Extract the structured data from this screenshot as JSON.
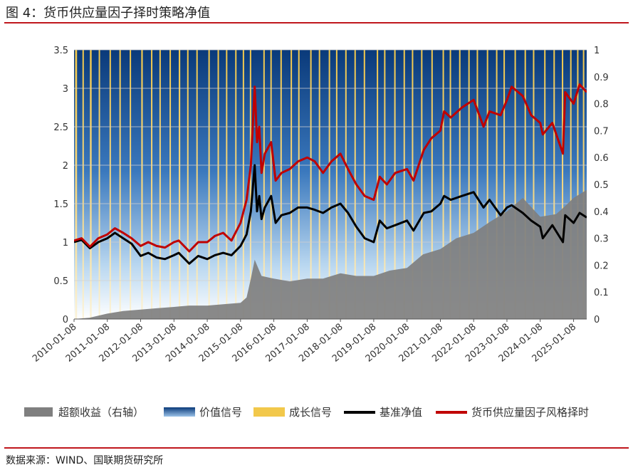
{
  "header": {
    "title": "图 4：货币供应量因子择时策略净值"
  },
  "footer": {
    "source": "数据来源：WIND、国联期货研究所"
  },
  "colors": {
    "accent_red": "#c0171d",
    "excess": "#7f7f7f",
    "value_signal": "#0a3a7a",
    "growth_signal": "#f2c84b",
    "benchmark": "#000000",
    "strategy": "#c00000"
  },
  "chart_data": {
    "type": "line",
    "title": "",
    "x_ticks": [
      "2010-01-08",
      "2011-01-08",
      "2012-01-08",
      "2013-01-08",
      "2014-01-08",
      "2015-01-08",
      "2016-01-08",
      "2017-01-08",
      "2018-01-08",
      "2019-01-08",
      "2020-01-08",
      "2021-01-08",
      "2022-01-08",
      "2023-01-08",
      "2024-01-08",
      "2025-01-08"
    ],
    "x_tick_labels": [
      "2010-01-08",
      "2011-01-08",
      "2012-01-08",
      "2013-01-08",
      "2014-01-08",
      "2015-01-08",
      "2016-01-08",
      "2017-01-08",
      "2018-01-08",
      "2019-01-08",
      "2020-01-08",
      "2021-01-08",
      "2022-01-08",
      "2023-01-08",
      "2024-01-08",
      "2025-01-08"
    ],
    "x_range": [
      "2010-01-08",
      "2025-06-01"
    ],
    "y_left": {
      "ylim": [
        0,
        3.5
      ],
      "ticks": [
        "0",
        "0.5",
        "1",
        "1.5",
        "2",
        "2.5",
        "3",
        "3.5"
      ]
    },
    "y_right": {
      "ylim": [
        0,
        1
      ],
      "ticks": [
        "0",
        "0.1",
        "0.2",
        "0.3",
        "0.4",
        "0.5",
        "0.6",
        "0.7",
        "0.8",
        "0.9",
        "1"
      ]
    },
    "legend": {
      "position": "bottom",
      "items": [
        "超额收益（右轴）",
        "价值信号",
        "成长信号",
        "基准净值",
        "货币供应量因子风格择时"
      ]
    },
    "series": [
      {
        "name": "基准净值",
        "axis": "left",
        "points": [
          [
            "2010-01-08",
            1.0
          ],
          [
            "2010-04-01",
            1.03
          ],
          [
            "2010-07-01",
            0.92
          ],
          [
            "2010-10-01",
            1.0
          ],
          [
            "2011-01-08",
            1.05
          ],
          [
            "2011-04-01",
            1.12
          ],
          [
            "2011-07-01",
            1.05
          ],
          [
            "2011-10-01",
            0.98
          ],
          [
            "2012-01-08",
            0.82
          ],
          [
            "2012-04-01",
            0.86
          ],
          [
            "2012-07-01",
            0.8
          ],
          [
            "2012-10-01",
            0.78
          ],
          [
            "2013-01-08",
            0.83
          ],
          [
            "2013-03-01",
            0.86
          ],
          [
            "2013-06-25",
            0.72
          ],
          [
            "2013-10-01",
            0.82
          ],
          [
            "2014-01-08",
            0.78
          ],
          [
            "2014-04-01",
            0.83
          ],
          [
            "2014-07-01",
            0.86
          ],
          [
            "2014-10-01",
            0.83
          ],
          [
            "2015-01-08",
            0.95
          ],
          [
            "2015-03-15",
            1.1
          ],
          [
            "2015-05-01",
            1.4
          ],
          [
            "2015-06-12",
            2.0
          ],
          [
            "2015-07-08",
            1.4
          ],
          [
            "2015-08-01",
            1.6
          ],
          [
            "2015-08-26",
            1.3
          ],
          [
            "2015-10-01",
            1.45
          ],
          [
            "2015-12-10",
            1.6
          ],
          [
            "2016-01-28",
            1.25
          ],
          [
            "2016-04-01",
            1.35
          ],
          [
            "2016-07-01",
            1.38
          ],
          [
            "2016-10-01",
            1.45
          ],
          [
            "2017-01-08",
            1.45
          ],
          [
            "2017-04-01",
            1.42
          ],
          [
            "2017-07-01",
            1.38
          ],
          [
            "2017-10-01",
            1.45
          ],
          [
            "2018-01-08",
            1.5
          ],
          [
            "2018-04-01",
            1.38
          ],
          [
            "2018-07-01",
            1.2
          ],
          [
            "2018-10-01",
            1.05
          ],
          [
            "2019-01-08",
            1.0
          ],
          [
            "2019-03-15",
            1.28
          ],
          [
            "2019-06-01",
            1.18
          ],
          [
            "2019-09-01",
            1.22
          ],
          [
            "2020-01-08",
            1.28
          ],
          [
            "2020-03-20",
            1.15
          ],
          [
            "2020-07-10",
            1.38
          ],
          [
            "2020-10-01",
            1.4
          ],
          [
            "2021-01-08",
            1.5
          ],
          [
            "2021-02-18",
            1.6
          ],
          [
            "2021-05-01",
            1.55
          ],
          [
            "2021-09-01",
            1.6
          ],
          [
            "2022-01-08",
            1.65
          ],
          [
            "2022-04-26",
            1.45
          ],
          [
            "2022-07-01",
            1.55
          ],
          [
            "2022-10-31",
            1.35
          ],
          [
            "2023-01-08",
            1.45
          ],
          [
            "2023-03-01",
            1.48
          ],
          [
            "2023-07-01",
            1.38
          ],
          [
            "2023-10-01",
            1.28
          ],
          [
            "2024-01-08",
            1.2
          ],
          [
            "2024-02-05",
            1.05
          ],
          [
            "2024-05-20",
            1.22
          ],
          [
            "2024-09-13",
            1.0
          ],
          [
            "2024-10-08",
            1.35
          ],
          [
            "2025-01-08",
            1.25
          ],
          [
            "2025-03-15",
            1.38
          ],
          [
            "2025-06-01",
            1.32
          ]
        ]
      },
      {
        "name": "货币供应量因子风格择时",
        "axis": "left",
        "points": [
          [
            "2010-01-08",
            1.02
          ],
          [
            "2010-04-01",
            1.05
          ],
          [
            "2010-07-01",
            0.94
          ],
          [
            "2010-10-01",
            1.05
          ],
          [
            "2011-01-08",
            1.1
          ],
          [
            "2011-04-01",
            1.18
          ],
          [
            "2011-07-01",
            1.12
          ],
          [
            "2011-10-01",
            1.05
          ],
          [
            "2012-01-08",
            0.95
          ],
          [
            "2012-04-01",
            1.0
          ],
          [
            "2012-07-01",
            0.95
          ],
          [
            "2012-10-01",
            0.93
          ],
          [
            "2013-01-08",
            1.0
          ],
          [
            "2013-03-01",
            1.02
          ],
          [
            "2013-06-25",
            0.88
          ],
          [
            "2013-10-01",
            1.0
          ],
          [
            "2014-01-08",
            1.0
          ],
          [
            "2014-04-01",
            1.08
          ],
          [
            "2014-07-01",
            1.12
          ],
          [
            "2014-10-01",
            1.02
          ],
          [
            "2015-01-08",
            1.25
          ],
          [
            "2015-03-15",
            1.55
          ],
          [
            "2015-05-01",
            2.0
          ],
          [
            "2015-06-12",
            3.02
          ],
          [
            "2015-07-08",
            2.3
          ],
          [
            "2015-08-01",
            2.5
          ],
          [
            "2015-08-26",
            1.9
          ],
          [
            "2015-10-01",
            2.15
          ],
          [
            "2015-12-10",
            2.3
          ],
          [
            "2016-01-28",
            1.8
          ],
          [
            "2016-04-01",
            1.9
          ],
          [
            "2016-07-01",
            1.95
          ],
          [
            "2016-10-01",
            2.05
          ],
          [
            "2017-01-08",
            2.1
          ],
          [
            "2017-04-01",
            2.05
          ],
          [
            "2017-07-01",
            1.9
          ],
          [
            "2017-10-01",
            2.05
          ],
          [
            "2018-01-08",
            2.15
          ],
          [
            "2018-04-01",
            1.95
          ],
          [
            "2018-07-01",
            1.75
          ],
          [
            "2018-10-01",
            1.6
          ],
          [
            "2019-01-08",
            1.55
          ],
          [
            "2019-03-15",
            1.85
          ],
          [
            "2019-06-01",
            1.75
          ],
          [
            "2019-09-01",
            1.9
          ],
          [
            "2020-01-08",
            1.95
          ],
          [
            "2020-03-20",
            1.8
          ],
          [
            "2020-07-10",
            2.2
          ],
          [
            "2020-10-01",
            2.35
          ],
          [
            "2021-01-08",
            2.45
          ],
          [
            "2021-02-18",
            2.7
          ],
          [
            "2021-05-01",
            2.62
          ],
          [
            "2021-09-01",
            2.75
          ],
          [
            "2022-01-08",
            2.85
          ],
          [
            "2022-04-26",
            2.5
          ],
          [
            "2022-07-01",
            2.7
          ],
          [
            "2022-10-31",
            2.65
          ],
          [
            "2023-01-08",
            2.85
          ],
          [
            "2023-03-01",
            3.02
          ],
          [
            "2023-07-01",
            2.9
          ],
          [
            "2023-10-01",
            2.65
          ],
          [
            "2024-01-08",
            2.55
          ],
          [
            "2024-02-05",
            2.4
          ],
          [
            "2024-05-20",
            2.55
          ],
          [
            "2024-09-13",
            2.15
          ],
          [
            "2024-10-08",
            2.95
          ],
          [
            "2025-01-08",
            2.8
          ],
          [
            "2025-03-15",
            3.05
          ],
          [
            "2025-06-01",
            2.95
          ]
        ]
      },
      {
        "name": "超额收益（右轴）",
        "axis": "right",
        "type": "area",
        "points": [
          [
            "2010-01-08",
            0.0
          ],
          [
            "2010-07-01",
            0.005
          ],
          [
            "2011-01-08",
            0.02
          ],
          [
            "2011-07-01",
            0.03
          ],
          [
            "2012-01-08",
            0.035
          ],
          [
            "2012-07-01",
            0.04
          ],
          [
            "2013-01-08",
            0.045
          ],
          [
            "2013-06-25",
            0.05
          ],
          [
            "2014-01-08",
            0.05
          ],
          [
            "2014-07-01",
            0.055
          ],
          [
            "2015-01-08",
            0.06
          ],
          [
            "2015-03-15",
            0.08
          ],
          [
            "2015-05-01",
            0.15
          ],
          [
            "2015-06-12",
            0.22
          ],
          [
            "2015-08-26",
            0.16
          ],
          [
            "2016-01-08",
            0.15
          ],
          [
            "2016-07-01",
            0.14
          ],
          [
            "2017-01-08",
            0.15
          ],
          [
            "2017-07-01",
            0.15
          ],
          [
            "2018-01-08",
            0.17
          ],
          [
            "2018-07-01",
            0.16
          ],
          [
            "2019-01-08",
            0.16
          ],
          [
            "2019-07-01",
            0.18
          ],
          [
            "2020-01-08",
            0.19
          ],
          [
            "2020-07-01",
            0.24
          ],
          [
            "2021-01-08",
            0.26
          ],
          [
            "2021-07-01",
            0.3
          ],
          [
            "2022-01-08",
            0.32
          ],
          [
            "2022-07-01",
            0.36
          ],
          [
            "2023-01-08",
            0.4
          ],
          [
            "2023-07-01",
            0.45
          ],
          [
            "2024-01-08",
            0.38
          ],
          [
            "2024-07-01",
            0.39
          ],
          [
            "2024-10-08",
            0.42
          ],
          [
            "2025-01-08",
            0.45
          ],
          [
            "2025-06-01",
            0.48
          ]
        ]
      }
    ],
    "growth_signal_periods": [
      [
        "2010-01-20",
        "2010-02-10"
      ],
      [
        "2010-04-10",
        "2010-04-25"
      ],
      [
        "2010-07-01",
        "2010-07-20"
      ],
      [
        "2010-10-05",
        "2010-10-20"
      ],
      [
        "2011-02-01",
        "2011-02-15"
      ],
      [
        "2011-05-20",
        "2011-06-05"
      ],
      [
        "2011-09-10",
        "2011-09-25"
      ],
      [
        "2012-01-15",
        "2012-02-01"
      ],
      [
        "2012-05-01",
        "2012-05-12"
      ],
      [
        "2012-08-01",
        "2012-08-15"
      ],
      [
        "2012-11-20",
        "2012-12-05"
      ],
      [
        "2013-03-01",
        "2013-03-18"
      ],
      [
        "2013-06-01",
        "2013-06-15"
      ],
      [
        "2013-09-10",
        "2013-09-22"
      ],
      [
        "2014-01-20",
        "2014-02-05"
      ],
      [
        "2014-05-01",
        "2014-05-15"
      ],
      [
        "2014-08-01",
        "2014-08-12"
      ],
      [
        "2014-11-10",
        "2014-11-25"
      ],
      [
        "2015-02-01",
        "2015-02-15"
      ],
      [
        "2015-04-20",
        "2015-05-05"
      ],
      [
        "2015-09-15",
        "2015-09-30"
      ],
      [
        "2015-12-01",
        "2015-12-12"
      ],
      [
        "2016-03-20",
        "2016-04-05"
      ],
      [
        "2016-07-10",
        "2016-07-22"
      ],
      [
        "2016-10-01",
        "2016-10-15"
      ],
      [
        "2017-02-10",
        "2017-02-25"
      ],
      [
        "2017-05-15",
        "2017-05-28"
      ],
      [
        "2017-09-01",
        "2017-09-12"
      ],
      [
        "2017-11-20",
        "2017-12-05"
      ],
      [
        "2018-03-01",
        "2018-03-15"
      ],
      [
        "2018-06-10",
        "2018-06-22"
      ],
      [
        "2018-09-20",
        "2018-10-05"
      ],
      [
        "2019-02-10",
        "2019-02-25"
      ],
      [
        "2019-05-01",
        "2019-05-15"
      ],
      [
        "2019-08-20",
        "2019-09-05"
      ],
      [
        "2019-12-01",
        "2019-12-12"
      ],
      [
        "2020-03-01",
        "2020-03-15"
      ],
      [
        "2020-06-10",
        "2020-06-25"
      ],
      [
        "2020-10-01",
        "2020-10-12"
      ],
      [
        "2021-02-01",
        "2021-02-15"
      ],
      [
        "2021-04-20",
        "2021-05-05"
      ],
      [
        "2021-08-01",
        "2021-08-12"
      ],
      [
        "2021-11-10",
        "2021-11-22"
      ],
      [
        "2022-02-10",
        "2022-02-25"
      ],
      [
        "2022-06-01",
        "2022-06-15"
      ],
      [
        "2022-09-10",
        "2022-09-22"
      ],
      [
        "2022-12-01",
        "2022-12-12"
      ],
      [
        "2023-04-01",
        "2023-04-15"
      ],
      [
        "2023-07-20",
        "2023-08-05"
      ],
      [
        "2023-10-20",
        "2023-11-02"
      ],
      [
        "2024-02-20",
        "2024-03-05"
      ],
      [
        "2024-06-01",
        "2024-06-12"
      ],
      [
        "2024-09-01",
        "2024-09-12"
      ],
      [
        "2024-12-01",
        "2024-12-15"
      ],
      [
        "2025-02-15",
        "2025-03-01"
      ],
      [
        "2025-04-20",
        "2025-05-05"
      ]
    ]
  }
}
